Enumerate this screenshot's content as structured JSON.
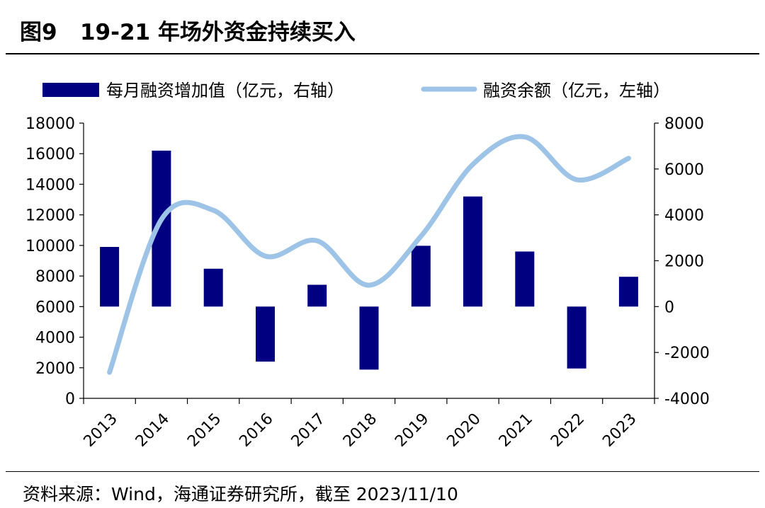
{
  "figure": {
    "title": "图9   19-21 年场外资金持续买入",
    "source": "资料来源：Wind，海通证券研究所，截至 2023/11/10"
  },
  "chart_data": {
    "type": "bar+line",
    "categories": [
      "2013",
      "2014",
      "2015",
      "2016",
      "2017",
      "2018",
      "2019",
      "2020",
      "2021",
      "2022",
      "2023"
    ],
    "series": [
      {
        "name": "每月融资增加值（亿元，右轴）",
        "type": "bar",
        "axis": "right",
        "color": "#000080",
        "values": [
          2600,
          6800,
          1650,
          -2400,
          950,
          -2750,
          2650,
          4800,
          2400,
          -2700,
          1300
        ]
      },
      {
        "name": "融资余额（亿元，左轴）",
        "type": "line",
        "axis": "left",
        "color": "#9dc3e6",
        "values": [
          1700,
          11700,
          12300,
          9300,
          10300,
          7400,
          10600,
          15300,
          17100,
          14300,
          15700
        ]
      }
    ],
    "left_axis": {
      "min": 0,
      "max": 18000,
      "ticks": [
        0,
        2000,
        4000,
        6000,
        8000,
        10000,
        12000,
        14000,
        16000,
        18000
      ]
    },
    "right_axis": {
      "min": -4000,
      "max": 8000,
      "ticks": [
        -4000,
        -2000,
        0,
        2000,
        4000,
        6000,
        8000
      ]
    },
    "legend_position": "top",
    "grid": false
  }
}
